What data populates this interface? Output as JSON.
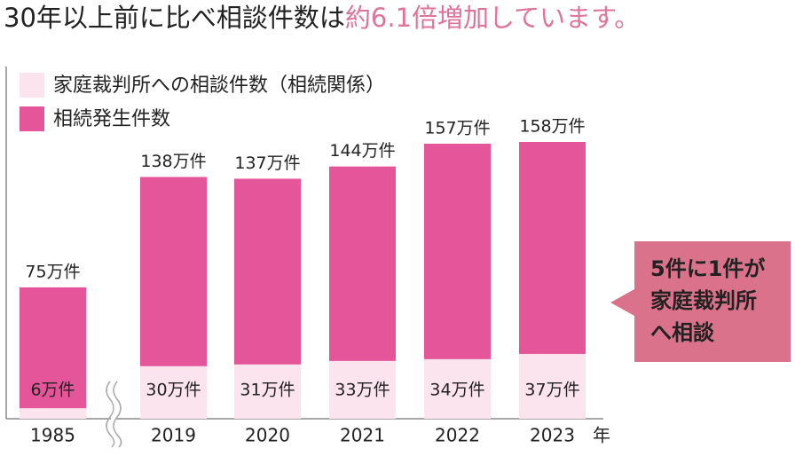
{
  "chart_data": {
    "type": "overlap-bar",
    "title_lead": "30年以上前に比べ相談件数は",
    "title_highlight": "約6.1倍増加しています。",
    "categories": [
      "1985",
      "2019",
      "2020",
      "2021",
      "2022",
      "2023"
    ],
    "x_unit": "年",
    "series": [
      {
        "name": "相続発生件数",
        "color": "#e4559a",
        "values": [
          75,
          138,
          137,
          144,
          157,
          158
        ],
        "value_labels": [
          "75万件",
          "138万件",
          "137万件",
          "144万件",
          "157万件",
          "158万件"
        ]
      },
      {
        "name": "家庭裁判所への相談件数（相続関係）",
        "color": "#fce4ee",
        "values": [
          6,
          30,
          31,
          33,
          34,
          37
        ],
        "value_labels": [
          "6万件",
          "30万件",
          "31万件",
          "33万件",
          "34万件",
          "37万件"
        ]
      }
    ],
    "callout": [
      "5件に1件が",
      "家庭裁判所",
      "へ相談"
    ]
  }
}
